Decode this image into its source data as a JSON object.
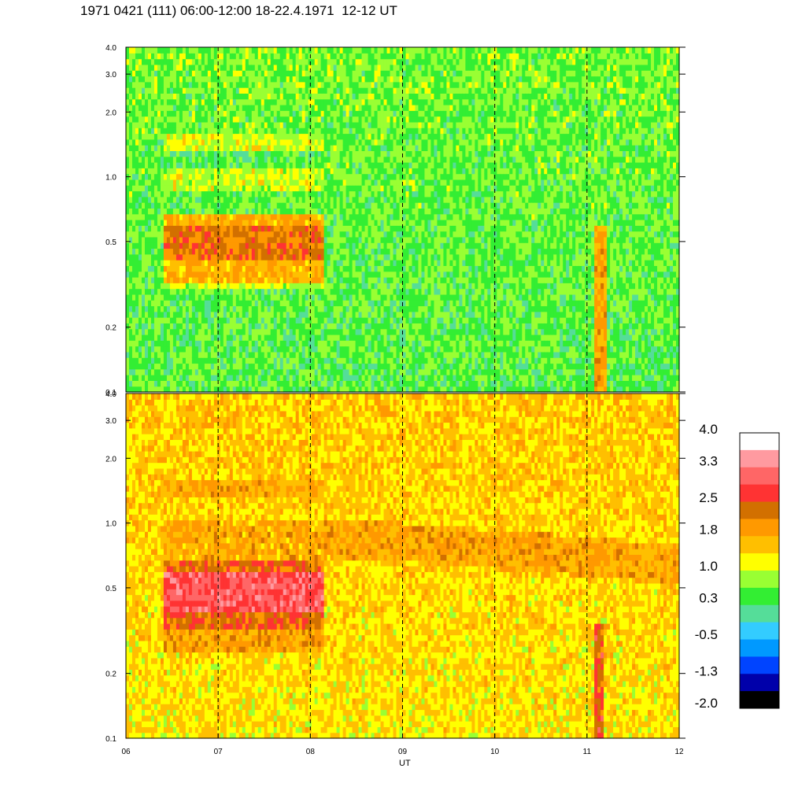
{
  "title": "1971 0421 (111) 06:00-12:00 18-22.4.1971  12-12 UT",
  "chart_data": {
    "type": "heatmap",
    "panels": [
      {
        "name": "",
        "y_ticks": [
          "4.0",
          "3.0",
          "2.0",
          "1.0",
          "0.5",
          "0.2",
          "0.1"
        ],
        "y_tick_values": [
          4.0,
          3.0,
          2.0,
          1.0,
          0.5,
          0.2,
          0.1
        ],
        "scale": "log",
        "ylim": [
          0.1,
          4.0
        ]
      },
      {
        "name": "",
        "y_ticks": [
          "4.0",
          "3.0",
          "2.0",
          "1.0",
          "0.5",
          "0.2",
          "0.1"
        ],
        "y_tick_values": [
          4.0,
          3.0,
          2.0,
          1.0,
          0.5,
          0.2,
          0.1
        ],
        "scale": "log",
        "ylim": [
          0.1,
          4.0
        ]
      }
    ],
    "x_ticks": [
      "06",
      "07",
      "08",
      "09",
      "10",
      "11",
      "12"
    ],
    "x_tick_values": [
      6,
      7,
      8,
      9,
      10,
      11,
      12
    ],
    "xlim": [
      6,
      12
    ],
    "xlabel": "UT",
    "dashed_verticals": [
      7,
      8,
      9,
      10,
      11
    ],
    "colorbar": {
      "tick_labels": [
        "4.0",
        "3.3",
        "2.5",
        "1.8",
        "1.0",
        "0.3",
        "-0.5",
        "-1.3",
        "-2.0"
      ],
      "tick_values": [
        4.0,
        3.3,
        2.5,
        1.8,
        1.0,
        0.3,
        -0.5,
        -1.3,
        -2.0
      ],
      "colors_top_to_bottom": [
        "#ffffff",
        "#ff9aa0",
        "#ff6666",
        "#ff3333",
        "#d27000",
        "#ff9900",
        "#ffbf00",
        "#ffff00",
        "#99ff33",
        "#33ee33",
        "#55dd99",
        "#33ccff",
        "#0099ff",
        "#0044ff",
        "#0000aa",
        "#000000"
      ]
    }
  }
}
